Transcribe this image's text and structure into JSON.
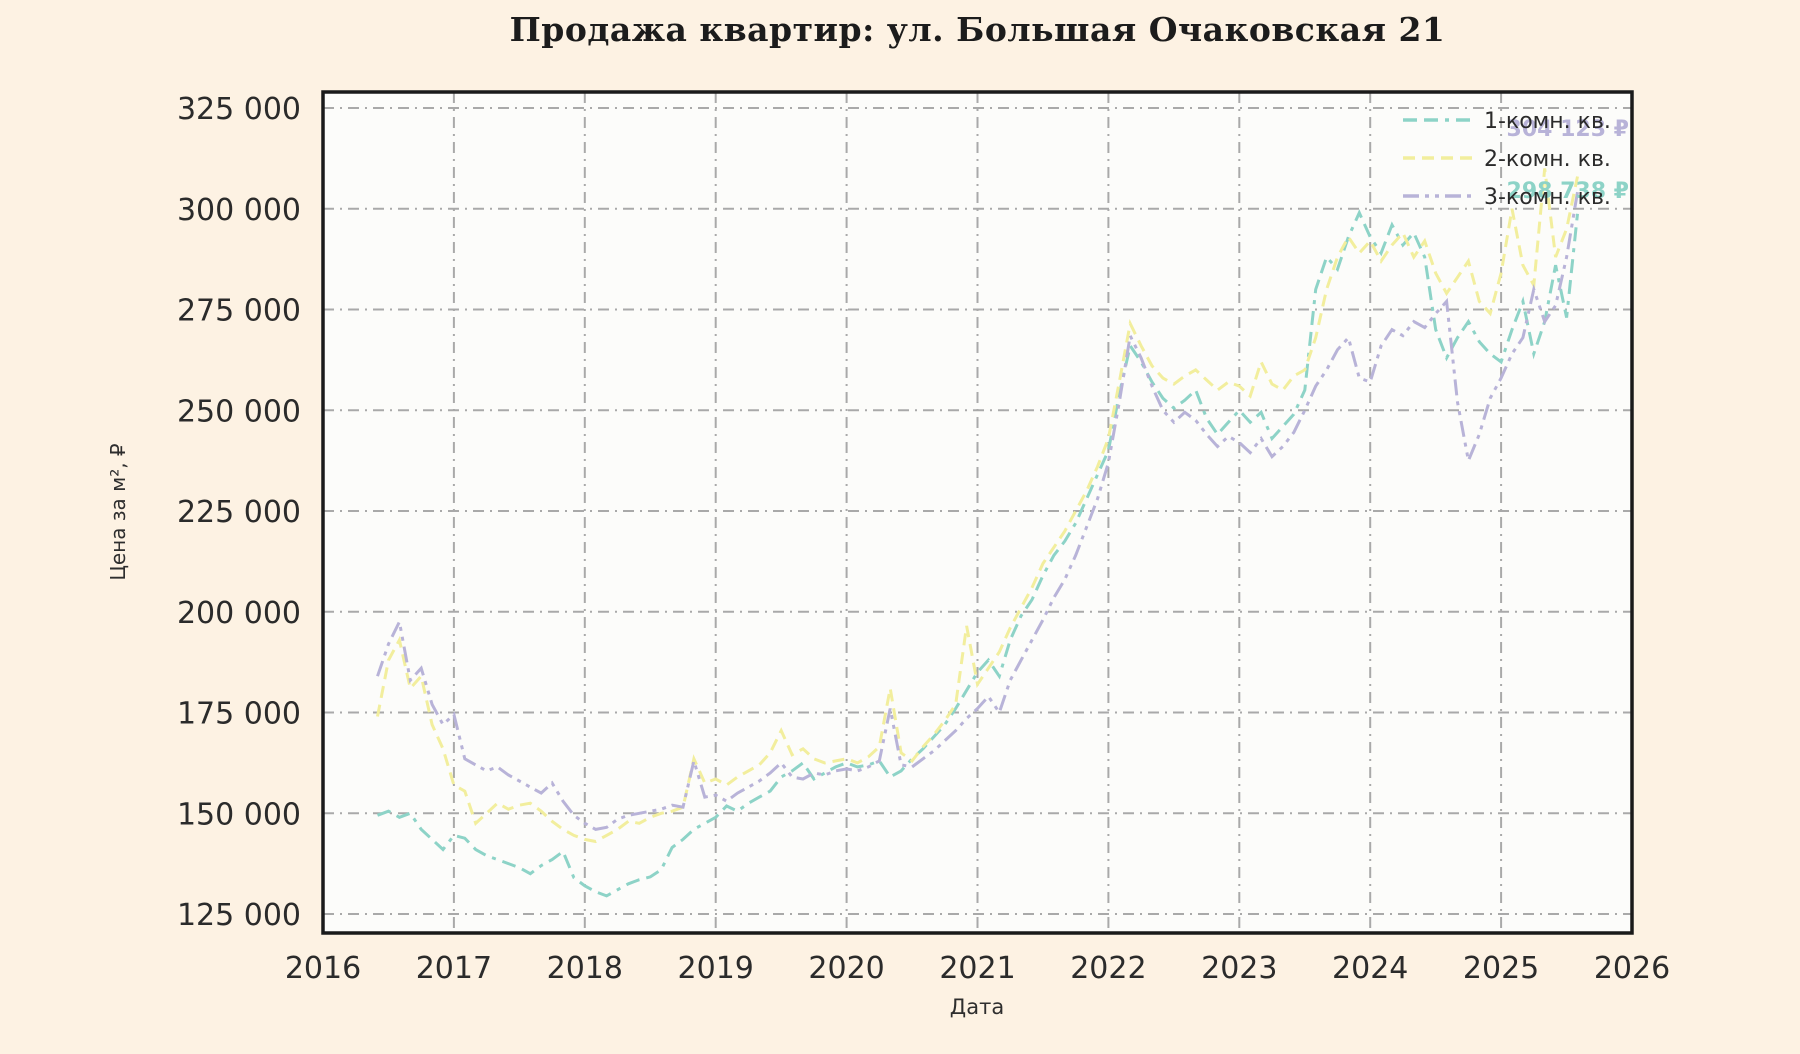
{
  "chart_data": {
    "type": "line",
    "title": "Продажа квартир: ул. Большая Очаковская 21",
    "xlabel": "Дата",
    "ylabel": "Цена за м², ₽",
    "grid": true,
    "legend_position": "top-right",
    "xlim": [
      2016,
      2026
    ],
    "ylim": [
      120300,
      329000
    ],
    "x_ticks": [
      2016,
      2017,
      2018,
      2019,
      2020,
      2021,
      2022,
      2023,
      2024,
      2025,
      2026
    ],
    "y_ticks": [
      125000,
      150000,
      175000,
      200000,
      225000,
      250000,
      275000,
      300000,
      325000
    ],
    "y_tick_labels": [
      "125 000",
      "150 000",
      "175 000",
      "200 000",
      "225 000",
      "250 000",
      "275 000",
      "300 000",
      "325 000"
    ],
    "x_start_year": 2016.4167,
    "x_step_years": 0.0833333,
    "series": [
      {
        "name": "1-комн. кв.",
        "color": "#8dd3c7",
        "final_value": 298738,
        "values": [
          149500,
          150500,
          149000,
          150000,
          146000,
          143500,
          141000,
          144500,
          143800,
          141000,
          139500,
          138500,
          137500,
          136500,
          135000,
          137000,
          138500,
          140500,
          134000,
          132000,
          130500,
          129500,
          131000,
          132500,
          133500,
          134200,
          136000,
          141500,
          143500,
          146000,
          147500,
          149000,
          151800,
          150500,
          152500,
          154000,
          155500,
          159000,
          160500,
          162500,
          158500,
          160000,
          161500,
          162500,
          161500,
          162000,
          163000,
          159000,
          160500,
          163500,
          166000,
          169000,
          172000,
          176000,
          180500,
          185000,
          188000,
          184000,
          193000,
          199000,
          203000,
          209000,
          214000,
          217500,
          222000,
          228000,
          234000,
          240000,
          254000,
          266000,
          262000,
          257000,
          253000,
          250500,
          252500,
          255000,
          248000,
          244000,
          247000,
          250000,
          247000,
          249500,
          243000,
          246000,
          249000,
          255000,
          280000,
          288000,
          285000,
          293000,
          299000,
          293000,
          289000,
          296000,
          291000,
          294000,
          288000,
          270000,
          263000,
          268000,
          272000,
          267000,
          264000,
          262000,
          270000,
          277000,
          264000,
          272000,
          286000,
          273000,
          298738
        ]
      },
      {
        "name": "2-комн. кв.",
        "color": "#f2ee9d",
        "final_value": null,
        "values": [
          174000,
          188000,
          193000,
          181000,
          184000,
          172000,
          166000,
          157000,
          155500,
          147500,
          150000,
          152500,
          151000,
          152000,
          152500,
          150500,
          148000,
          146000,
          144500,
          143500,
          143000,
          144500,
          146000,
          148000,
          147500,
          149000,
          150000,
          150500,
          151500,
          163500,
          157500,
          158500,
          157000,
          159000,
          160500,
          162000,
          165000,
          170500,
          164500,
          166000,
          163500,
          162500,
          163000,
          163500,
          162500,
          164000,
          166500,
          181000,
          165000,
          163000,
          166500,
          169500,
          173000,
          177000,
          196500,
          182000,
          186000,
          190000,
          196000,
          201000,
          206000,
          212000,
          216000,
          220000,
          225000,
          230000,
          236000,
          243000,
          257000,
          271500,
          266000,
          261000,
          258000,
          256500,
          258500,
          260000,
          257500,
          255000,
          257000,
          256000,
          253500,
          262000,
          256500,
          255000,
          258500,
          260000,
          268000,
          280000,
          288000,
          293000,
          289000,
          292000,
          287000,
          291000,
          294000,
          288000,
          292000,
          284000,
          279000,
          283000,
          287000,
          277000,
          274000,
          284000,
          300000,
          286000,
          281000,
          310000,
          288000,
          295000,
          308000
        ]
      },
      {
        "name": "3-комн. кв.",
        "color": "#b8b3d8",
        "final_value": 304123,
        "values": [
          184000,
          192000,
          197500,
          183000,
          186000,
          177000,
          172000,
          174500,
          163500,
          162000,
          160500,
          161500,
          159500,
          158000,
          156500,
          155000,
          157500,
          153000,
          149500,
          147500,
          146000,
          146500,
          148500,
          149500,
          150000,
          150500,
          151000,
          152000,
          151500,
          163000,
          154000,
          154500,
          153000,
          155000,
          156500,
          158000,
          160000,
          162500,
          159000,
          158500,
          160000,
          159500,
          160500,
          161000,
          160500,
          161500,
          163000,
          176000,
          162000,
          161500,
          163500,
          165500,
          168000,
          170500,
          173500,
          176000,
          179000,
          175000,
          183000,
          188000,
          193000,
          198000,
          203500,
          208000,
          214000,
          221000,
          228000,
          237000,
          252000,
          268500,
          263000,
          256000,
          250000,
          247000,
          249500,
          247500,
          244000,
          241000,
          243500,
          242000,
          239500,
          243000,
          238500,
          241000,
          244500,
          250000,
          256000,
          260000,
          265000,
          268000,
          258000,
          257000,
          266000,
          270000,
          268500,
          272000,
          270500,
          274000,
          277000,
          252000,
          237500,
          244000,
          253000,
          258000,
          264000,
          268000,
          280000,
          272000,
          276000,
          288000,
          304123
        ]
      }
    ],
    "annotations": [
      {
        "text": "304 123 ₽",
        "series_index": 2
      },
      {
        "text": "298 738 ₽",
        "series_index": 0
      }
    ],
    "colors": {
      "figure_background": "#fdf2e3",
      "plot_background": "#fcfcfa",
      "gridline": "#a9a9a9",
      "spine": "#1a1a1a",
      "text": "#2b2b2b"
    }
  }
}
